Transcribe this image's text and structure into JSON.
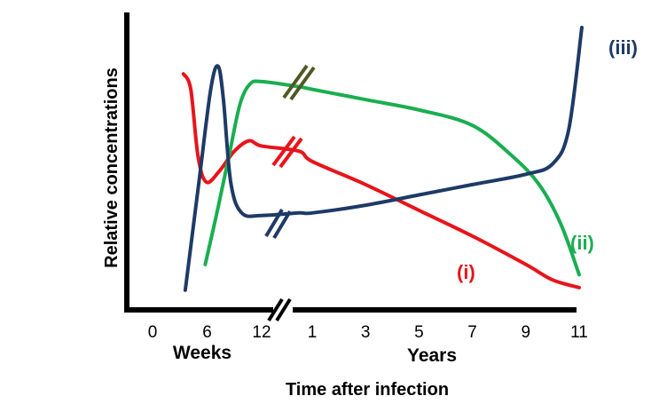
{
  "chart_data": {
    "type": "line",
    "title": "",
    "xlabel": "Time after infection",
    "ylabel": "Relative concentrations",
    "x_sections": [
      {
        "label": "Weeks",
        "ticks": [
          "0",
          "6",
          "12"
        ]
      },
      {
        "label": "Years",
        "ticks": [
          "1",
          "3",
          "5",
          "7",
          "9",
          "11"
        ]
      }
    ],
    "axis_break_marker": "//",
    "series": [
      {
        "name": "(i)",
        "color": "#e8141a",
        "points": [
          [
            3.4,
            0.92
          ],
          [
            4.2,
            0.86
          ],
          [
            5.0,
            0.6
          ],
          [
            5.9,
            0.5
          ],
          [
            7.3,
            0.54
          ],
          [
            9.0,
            0.62
          ],
          [
            10.6,
            0.66
          ],
          [
            12,
            0.64
          ],
          [
            0.5,
            0.62
          ],
          [
            1,
            0.58
          ],
          [
            3,
            0.49
          ],
          [
            5,
            0.39
          ],
          [
            7,
            0.29
          ],
          [
            9,
            0.18
          ],
          [
            10,
            0.12
          ],
          [
            11,
            0.09
          ]
        ]
      },
      {
        "name": "(ii)",
        "color": "#1aae50",
        "points": [
          [
            5.8,
            0.18
          ],
          [
            7.2,
            0.4
          ],
          [
            8.4,
            0.6
          ],
          [
            9.6,
            0.8
          ],
          [
            10.7,
            0.88
          ],
          [
            12,
            0.89
          ],
          [
            0.5,
            0.87
          ],
          [
            1,
            0.86
          ],
          [
            3,
            0.82
          ],
          [
            5,
            0.78
          ],
          [
            7,
            0.72
          ],
          [
            8.5,
            0.6
          ],
          [
            9.5,
            0.49
          ],
          [
            10.3,
            0.34
          ],
          [
            11,
            0.14
          ]
        ]
      },
      {
        "name": "(iii)",
        "color": "#1e3a66",
        "points": [
          [
            3.6,
            0.08
          ],
          [
            5.1,
            0.5
          ],
          [
            6.4,
            0.86
          ],
          [
            7.2,
            0.95
          ],
          [
            7.8,
            0.82
          ],
          [
            8.6,
            0.5
          ],
          [
            9.8,
            0.38
          ],
          [
            12,
            0.37
          ],
          [
            0.5,
            0.38
          ],
          [
            1,
            0.38
          ],
          [
            3,
            0.41
          ],
          [
            5,
            0.45
          ],
          [
            7,
            0.49
          ],
          [
            9,
            0.53
          ],
          [
            10,
            0.57
          ],
          [
            10.6,
            0.7
          ],
          [
            11.1,
            1.1
          ]
        ]
      }
    ]
  }
}
